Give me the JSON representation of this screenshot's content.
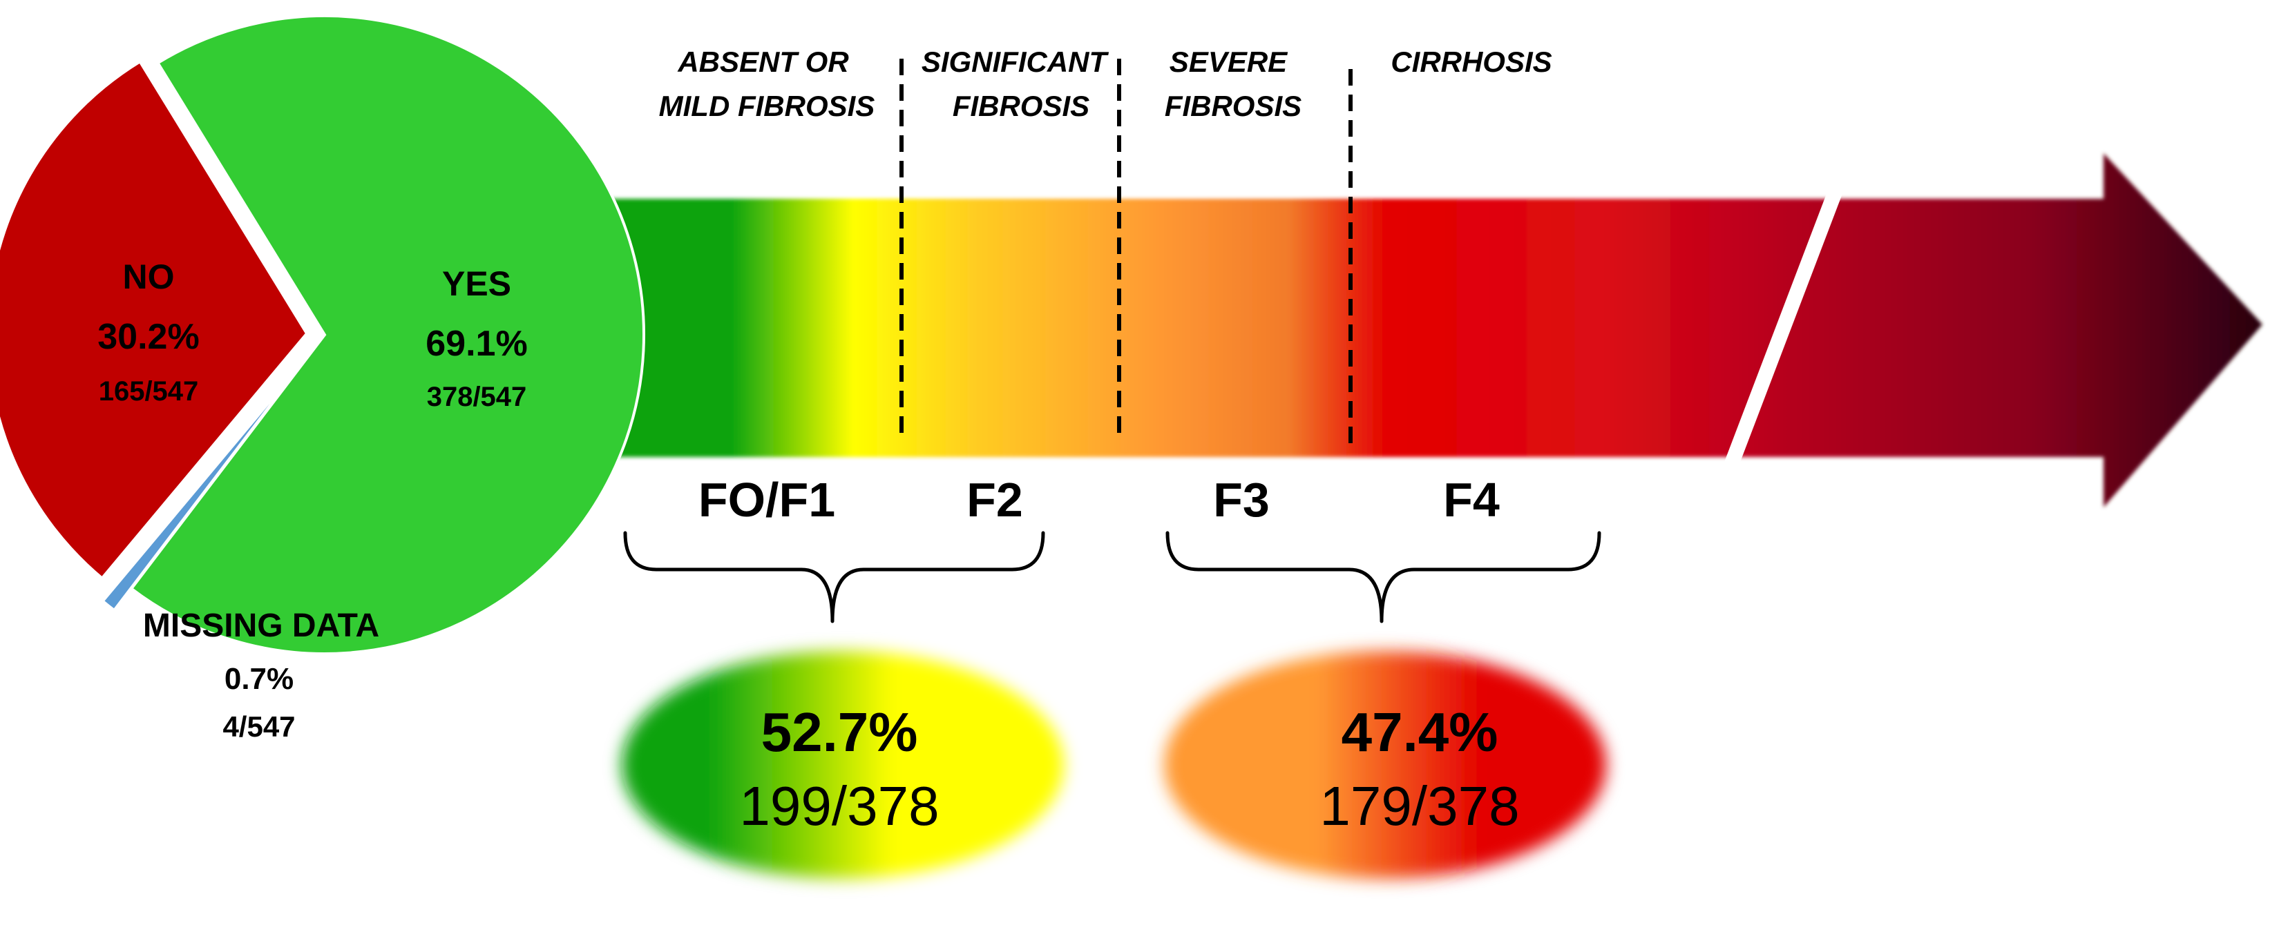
{
  "pie": {
    "segments": [
      {
        "key": "yes",
        "label": "YES",
        "pct_text": "69.1%",
        "count_text": "378/547",
        "value": 378,
        "color": "#33cc33"
      },
      {
        "key": "no",
        "label": "NO",
        "pct_text": "30.2%",
        "count_text": "165/547",
        "value": 165,
        "color": "#c00000"
      },
      {
        "key": "missing",
        "label": "MISSING DATA",
        "pct_text": "0.7%",
        "count_text": "4/547",
        "value": 4,
        "color": "#5b9bd5"
      }
    ]
  },
  "stages": {
    "headers": [
      "ABSENT OR",
      "MILD FIBROSIS",
      "SIGNIFICANT",
      "FIBROSIS",
      "SEVERE",
      "FIBROSIS",
      "CIRRHOSIS"
    ],
    "labels": [
      "FO/F1",
      "F2",
      "F3",
      "F4"
    ]
  },
  "groups": [
    {
      "pct": "52.7%",
      "count": "199/378"
    },
    {
      "pct": "47.4%",
      "count": "179/378"
    }
  ],
  "colors": {
    "green": "#0aa30a",
    "yellow": "#ffff00",
    "orange": "#ff9933",
    "red": "#e30000",
    "dark": "#2a0010"
  }
}
